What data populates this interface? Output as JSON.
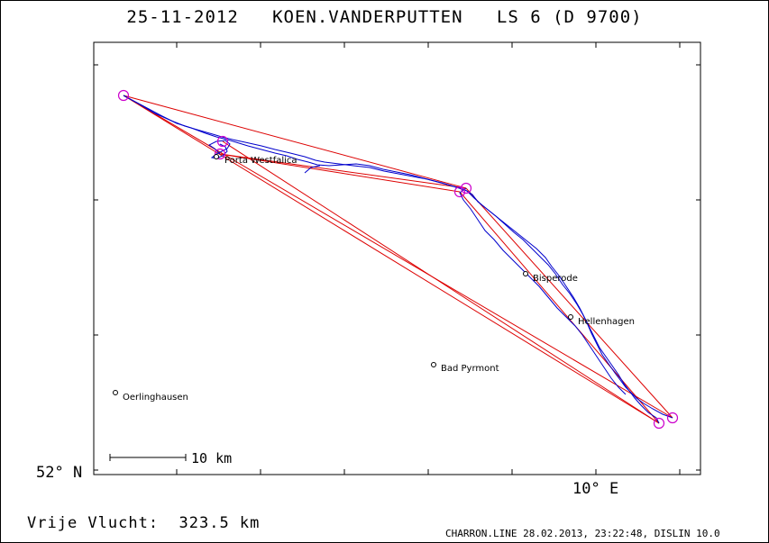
{
  "header": {
    "title": "25-11-2012   KOEN.VANDERPUTTEN   LS 6 (D 9700)"
  },
  "axes": {
    "latitude_label": "52° N",
    "longitude_label": "10° E"
  },
  "scale_bar": {
    "label": "10 km"
  },
  "places": [
    {
      "name": "Porta Westfalica"
    },
    {
      "name": "Bisperode"
    },
    {
      "name": "Hellenhagen"
    },
    {
      "name": "Bad Pyrmont"
    },
    {
      "name": "Oerlinghausen"
    }
  ],
  "footer": {
    "distance": "Vrije Vlucht:  323.5 km",
    "credits": "CHARRON.LINE 28.02.2013, 23:22:48, DISLIN 10.0"
  },
  "colors": {
    "task_lines": "#dd0000",
    "flight_track": "#0000cc",
    "turnpoints": "#cc00cc"
  }
}
